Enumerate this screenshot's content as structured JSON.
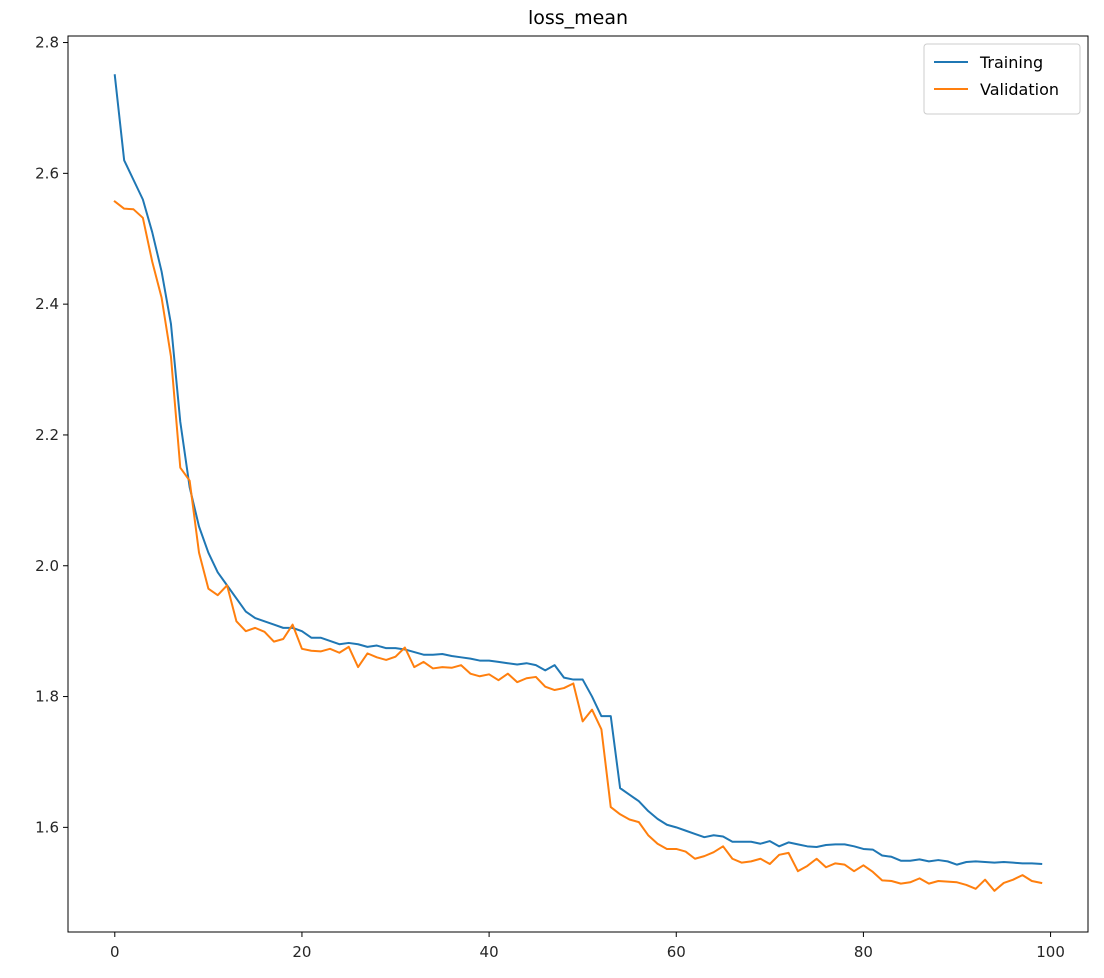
{
  "chart_data": {
    "type": "line",
    "title": "loss_mean",
    "xlabel": "",
    "ylabel": "",
    "xlim": [
      -5,
      104
    ],
    "ylim": [
      1.44,
      2.81
    ],
    "xticks": [
      0,
      20,
      40,
      60,
      80,
      100
    ],
    "yticks": [
      1.6,
      1.8,
      2.0,
      2.2,
      2.4,
      2.6,
      2.8
    ],
    "grid": false,
    "legend": "top-right",
    "x": [
      0,
      1,
      2,
      3,
      4,
      5,
      6,
      7,
      8,
      9,
      10,
      11,
      12,
      13,
      14,
      15,
      16,
      17,
      18,
      19,
      20,
      21,
      22,
      23,
      24,
      25,
      26,
      27,
      28,
      29,
      30,
      31,
      32,
      33,
      34,
      35,
      36,
      37,
      38,
      39,
      40,
      41,
      42,
      43,
      44,
      45,
      46,
      47,
      48,
      49,
      50,
      51,
      52,
      53,
      54,
      55,
      56,
      57,
      58,
      59,
      60,
      61,
      62,
      63,
      64,
      65,
      66,
      67,
      68,
      69,
      70,
      71,
      72,
      73,
      74,
      75,
      76,
      77,
      78,
      79,
      80,
      81,
      82,
      83,
      84,
      85,
      86,
      87,
      88,
      89,
      90,
      91,
      92,
      93,
      94,
      95,
      96,
      97,
      98,
      99
    ],
    "series": [
      {
        "name": "Training",
        "color": "#1f77b4",
        "values": [
          2.75,
          2.62,
          2.59,
          2.56,
          2.51,
          2.45,
          2.37,
          2.22,
          2.12,
          2.06,
          2.02,
          1.99,
          1.97,
          1.95,
          1.93,
          1.92,
          1.915,
          1.91,
          1.905,
          1.905,
          1.9,
          1.89,
          1.89,
          1.885,
          1.88,
          1.882,
          1.88,
          1.876,
          1.878,
          1.874,
          1.874,
          1.872,
          1.868,
          1.864,
          1.864,
          1.865,
          1.862,
          1.86,
          1.858,
          1.855,
          1.855,
          1.853,
          1.851,
          1.849,
          1.851,
          1.848,
          1.84,
          1.848,
          1.829,
          1.826,
          1.826,
          1.8,
          1.77,
          1.77,
          1.66,
          1.65,
          1.64,
          1.625,
          1.613,
          1.604,
          1.6,
          1.595,
          1.59,
          1.585,
          1.588,
          1.586,
          1.578,
          1.578,
          1.578,
          1.575,
          1.579,
          1.571,
          1.577,
          1.574,
          1.571,
          1.57,
          1.573,
          1.574,
          1.574,
          1.571,
          1.567,
          1.566,
          1.557,
          1.555,
          1.549,
          1.549,
          1.551,
          1.548,
          1.55,
          1.548,
          1.543,
          1.547,
          1.548,
          1.547,
          1.546,
          1.547,
          1.546,
          1.545,
          1.545,
          1.544
        ]
      },
      {
        "name": "Validation",
        "color": "#ff7f0e",
        "values": [
          2.557,
          2.546,
          2.545,
          2.532,
          2.465,
          2.41,
          2.32,
          2.15,
          2.13,
          2.02,
          1.965,
          1.955,
          1.97,
          1.915,
          1.9,
          1.905,
          1.899,
          1.884,
          1.888,
          1.91,
          1.873,
          1.87,
          1.869,
          1.873,
          1.867,
          1.876,
          1.845,
          1.866,
          1.86,
          1.856,
          1.861,
          1.875,
          1.845,
          1.853,
          1.843,
          1.845,
          1.844,
          1.848,
          1.835,
          1.831,
          1.834,
          1.825,
          1.835,
          1.822,
          1.828,
          1.83,
          1.815,
          1.81,
          1.813,
          1.82,
          1.762,
          1.78,
          1.75,
          1.631,
          1.62,
          1.612,
          1.608,
          1.588,
          1.575,
          1.567,
          1.567,
          1.563,
          1.552,
          1.556,
          1.562,
          1.571,
          1.552,
          1.546,
          1.548,
          1.552,
          1.544,
          1.558,
          1.561,
          1.533,
          1.541,
          1.552,
          1.539,
          1.545,
          1.543,
          1.533,
          1.542,
          1.532,
          1.519,
          1.518,
          1.514,
          1.516,
          1.522,
          1.514,
          1.518,
          1.517,
          1.516,
          1.512,
          1.506,
          1.52,
          1.503,
          1.515,
          1.52,
          1.527,
          1.518,
          1.515
        ]
      }
    ]
  }
}
